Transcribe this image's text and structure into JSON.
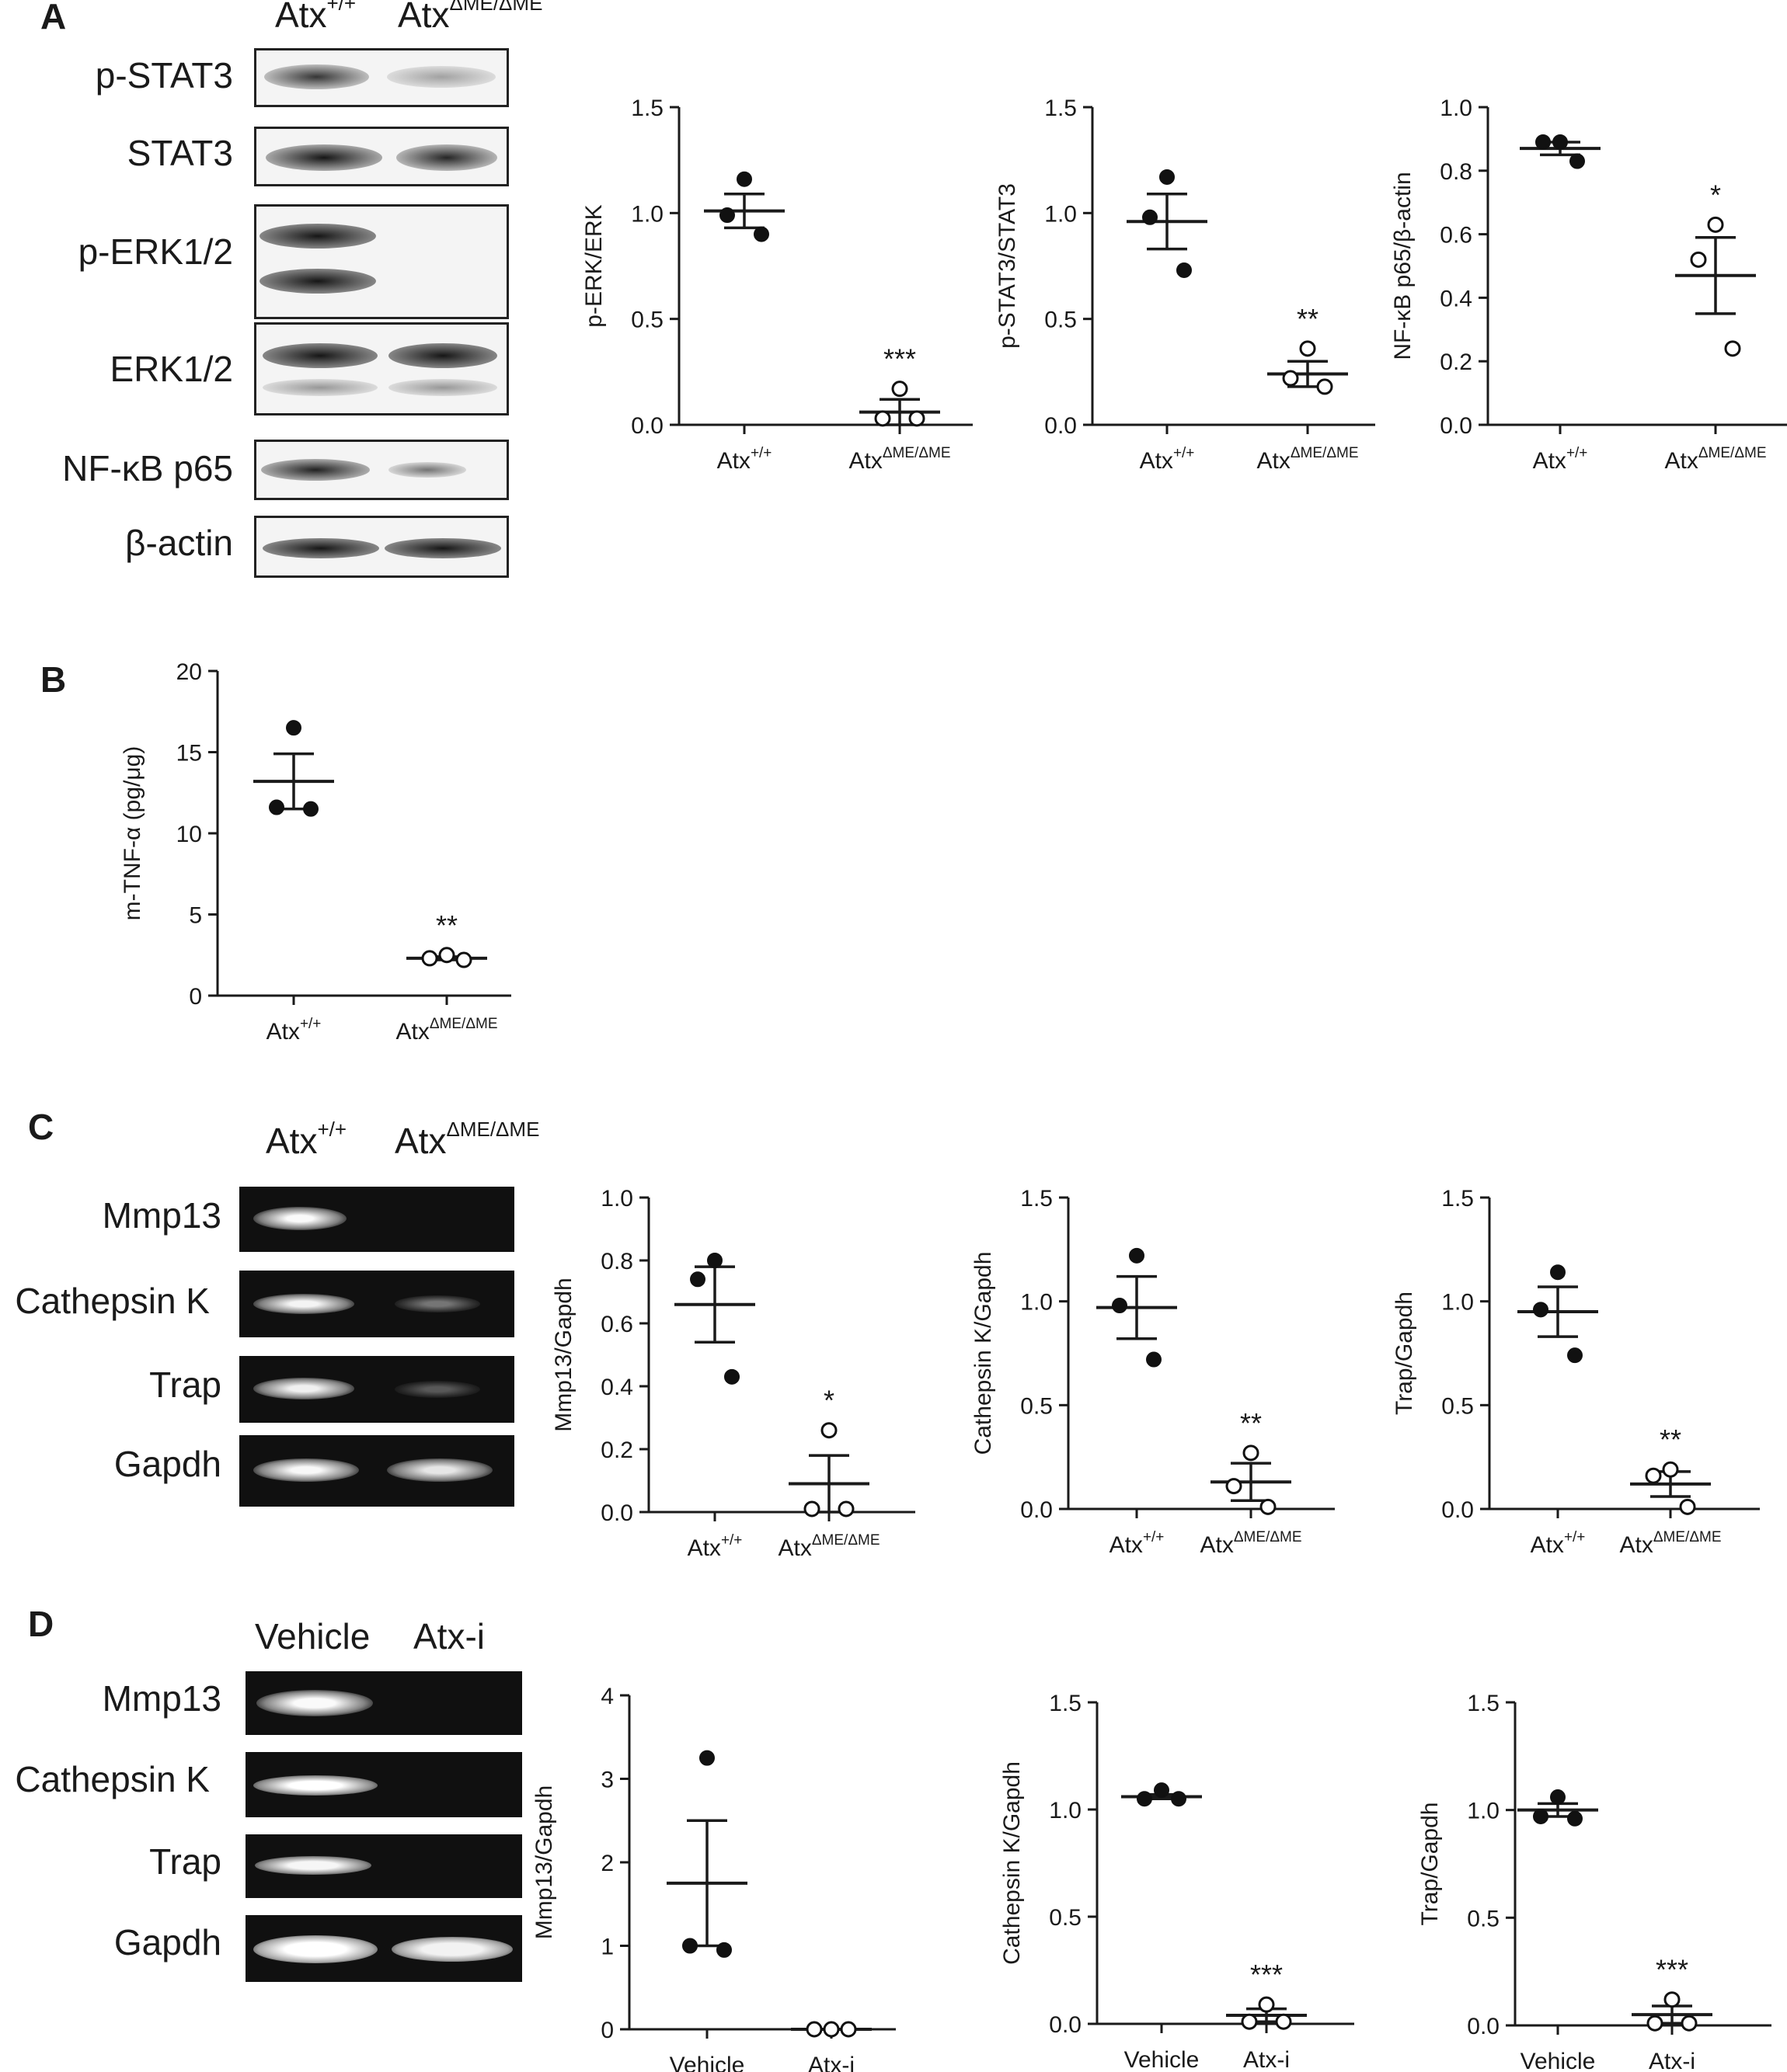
{
  "panels": {
    "A": {
      "letter": "A",
      "blot": {
        "columns": [
          "Atx",
          "Atx"
        ],
        "column_sup": [
          "+/+",
          "ΔME/ΔME"
        ],
        "rows": [
          "p-STAT3",
          "STAT3",
          "p-ERK1/2",
          "ERK1/2",
          "NF-κB p65",
          "β-actin"
        ]
      }
    },
    "B": {
      "letter": "B"
    },
    "C": {
      "letter": "C",
      "gel": {
        "columns": [
          "Atx",
          "Atx"
        ],
        "column_sup": [
          "+/+",
          "ΔME/ΔME"
        ],
        "rows": [
          "Mmp13",
          "Cathepsin K",
          "Trap",
          "Gapdh"
        ]
      }
    },
    "D": {
      "letter": "D",
      "gel": {
        "columns": [
          "Vehicle",
          "Atx-i"
        ],
        "rows": [
          "Mmp13",
          "Cathepsin K",
          "Trap",
          "Gapdh"
        ]
      }
    }
  },
  "chart_data": [
    {
      "id": "A1",
      "type": "scatter",
      "ylabel": "p-ERK/ERK",
      "categories": [
        "Atx",
        "Atx"
      ],
      "category_sup": [
        "+/+",
        "ΔME/ΔME"
      ],
      "ylim": [
        0,
        1.5
      ],
      "yticks": [
        "0.0",
        "0.5",
        "1.0",
        "1.5"
      ],
      "series": [
        {
          "points": [
            1.16,
            0.99,
            0.9
          ],
          "mean": 1.01,
          "sem": 0.08,
          "marker": "filled"
        },
        {
          "points": [
            0.17,
            0.03,
            0.03
          ],
          "mean": 0.06,
          "sem": 0.06,
          "marker": "open",
          "sig": "***"
        }
      ]
    },
    {
      "id": "A2",
      "type": "scatter",
      "ylabel": "p-STAT3/STAT3",
      "categories": [
        "Atx",
        "Atx"
      ],
      "category_sup": [
        "+/+",
        "ΔME/ΔME"
      ],
      "ylim": [
        0,
        1.5
      ],
      "yticks": [
        "0.0",
        "0.5",
        "1.0",
        "1.5"
      ],
      "series": [
        {
          "points": [
            1.17,
            0.98,
            0.73
          ],
          "mean": 0.96,
          "sem": 0.13,
          "marker": "filled"
        },
        {
          "points": [
            0.36,
            0.22,
            0.18
          ],
          "mean": 0.24,
          "sem": 0.06,
          "marker": "open",
          "sig": "**"
        }
      ]
    },
    {
      "id": "A3",
      "type": "scatter",
      "ylabel": "NF-κB p65/β-actin",
      "categories": [
        "Atx",
        "Atx"
      ],
      "category_sup": [
        "+/+",
        "ΔME/ΔME"
      ],
      "ylim": [
        0,
        1.0
      ],
      "yticks": [
        "0.0",
        "0.2",
        "0.4",
        "0.6",
        "0.8",
        "1.0"
      ],
      "series": [
        {
          "points": [
            0.89,
            0.89,
            0.83
          ],
          "mean": 0.87,
          "sem": 0.02,
          "marker": "filled"
        },
        {
          "points": [
            0.63,
            0.52,
            0.24
          ],
          "mean": 0.47,
          "sem": 0.12,
          "marker": "open",
          "sig": "*"
        }
      ]
    },
    {
      "id": "B1",
      "type": "scatter",
      "ylabel": "m-TNF-α (pg/μg)",
      "categories": [
        "Atx",
        "Atx"
      ],
      "category_sup": [
        "+/+",
        "ΔME/ΔME"
      ],
      "ylim": [
        0,
        20
      ],
      "yticks": [
        "0",
        "5",
        "10",
        "15",
        "20"
      ],
      "series": [
        {
          "points": [
            16.5,
            11.6,
            11.5
          ],
          "mean": 13.2,
          "sem": 1.7,
          "marker": "filled"
        },
        {
          "points": [
            2.5,
            2.3,
            2.2
          ],
          "mean": 2.3,
          "sem": 0.1,
          "marker": "open",
          "sig": "**"
        }
      ]
    },
    {
      "id": "C1",
      "type": "scatter",
      "ylabel": "Mmp13/Gapdh",
      "categories": [
        "Atx",
        "Atx"
      ],
      "category_sup": [
        "+/+",
        "ΔME/ΔME"
      ],
      "ylim": [
        0,
        1.0
      ],
      "yticks": [
        "0.0",
        "0.2",
        "0.4",
        "0.6",
        "0.8",
        "1.0"
      ],
      "series": [
        {
          "points": [
            0.8,
            0.74,
            0.43
          ],
          "mean": 0.66,
          "sem": 0.12,
          "marker": "filled"
        },
        {
          "points": [
            0.26,
            0.01,
            0.01
          ],
          "mean": 0.09,
          "sem": 0.09,
          "marker": "open",
          "sig": "*"
        }
      ]
    },
    {
      "id": "C2",
      "type": "scatter",
      "ylabel": "Cathepsin K/Gapdh",
      "categories": [
        "Atx",
        "Atx"
      ],
      "category_sup": [
        "+/+",
        "ΔME/ΔME"
      ],
      "ylim": [
        0,
        1.5
      ],
      "yticks": [
        "0.0",
        "0.5",
        "1.0",
        "1.5"
      ],
      "series": [
        {
          "points": [
            1.22,
            0.98,
            0.72
          ],
          "mean": 0.97,
          "sem": 0.15,
          "marker": "filled"
        },
        {
          "points": [
            0.27,
            0.11,
            0.01
          ],
          "mean": 0.13,
          "sem": 0.09,
          "marker": "open",
          "sig": "**"
        }
      ]
    },
    {
      "id": "C3",
      "type": "scatter",
      "ylabel": "Trap/Gapdh",
      "categories": [
        "Atx",
        "Atx"
      ],
      "category_sup": [
        "+/+",
        "ΔME/ΔME"
      ],
      "ylim": [
        0,
        1.5
      ],
      "yticks": [
        "0.0",
        "0.5",
        "1.0",
        "1.5"
      ],
      "series": [
        {
          "points": [
            1.14,
            0.96,
            0.74
          ],
          "mean": 0.95,
          "sem": 0.12,
          "marker": "filled"
        },
        {
          "points": [
            0.19,
            0.16,
            0.01
          ],
          "mean": 0.12,
          "sem": 0.06,
          "marker": "open",
          "sig": "**"
        }
      ]
    },
    {
      "id": "D1",
      "type": "scatter",
      "ylabel": "Mmp13/Gapdh",
      "categories": [
        "Vehicle",
        "Atx-i"
      ],
      "ylim": [
        0,
        4
      ],
      "yticks": [
        "0",
        "1",
        "2",
        "3",
        "4"
      ],
      "series": [
        {
          "points": [
            3.25,
            1.0,
            0.95
          ],
          "mean": 1.75,
          "sem": 0.75,
          "marker": "filled"
        },
        {
          "points": [
            0.0,
            0.0,
            0.0
          ],
          "mean": 0.0,
          "sem": 0.0,
          "marker": "open"
        }
      ]
    },
    {
      "id": "D2",
      "type": "scatter",
      "ylabel": "Cathepsin K/Gapdh",
      "categories": [
        "Vehicle",
        "Atx-i"
      ],
      "ylim": [
        0,
        1.5
      ],
      "yticks": [
        "0.0",
        "0.5",
        "1.0",
        "1.5"
      ],
      "series": [
        {
          "points": [
            1.09,
            1.05,
            1.05
          ],
          "mean": 1.06,
          "sem": 0.01,
          "marker": "filled"
        },
        {
          "points": [
            0.09,
            0.01,
            0.01
          ],
          "mean": 0.04,
          "sem": 0.03,
          "marker": "open",
          "sig": "***"
        }
      ]
    },
    {
      "id": "D3",
      "type": "scatter",
      "ylabel": "Trap/Gapdh",
      "categories": [
        "Vehicle",
        "Atx-i"
      ],
      "ylim": [
        0,
        1.5
      ],
      "yticks": [
        "0.0",
        "0.5",
        "1.0",
        "1.5"
      ],
      "series": [
        {
          "points": [
            1.06,
            0.97,
            0.96
          ],
          "mean": 1.0,
          "sem": 0.03,
          "marker": "filled"
        },
        {
          "points": [
            0.12,
            0.01,
            0.01
          ],
          "mean": 0.05,
          "sem": 0.04,
          "marker": "open",
          "sig": "***"
        }
      ]
    }
  ]
}
